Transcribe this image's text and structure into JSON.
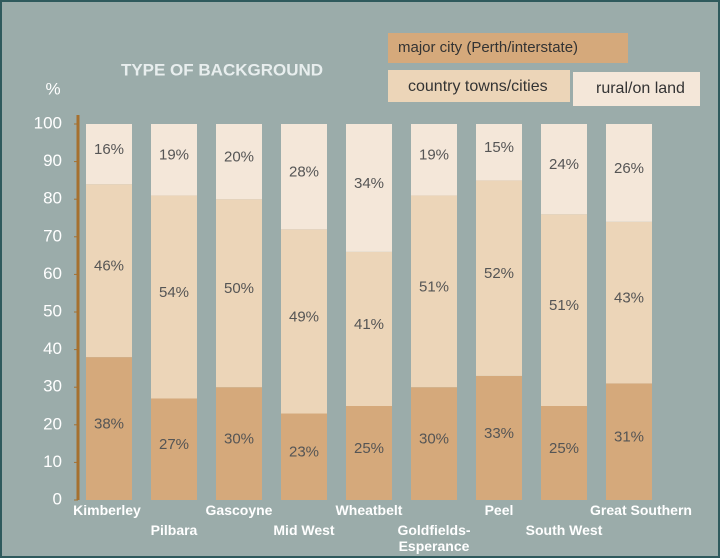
{
  "chart_data": {
    "type": "stacked_bar",
    "title": "TYPE OF BACKGROUND",
    "y_label": "%",
    "categories": [
      "Kimberley",
      "Pilbara",
      "Gascoyne",
      "Mid West",
      "Wheatbelt",
      "Goldfields-\nEsperance",
      "Peel",
      "South West",
      "Great Southern"
    ],
    "series": [
      {
        "name": "major city (Perth/interstate)",
        "color": "#d5a97b",
        "values": [
          38,
          27,
          30,
          23,
          25,
          30,
          33,
          25,
          31
        ],
        "value_labels": [
          "38%",
          "27%",
          "30%",
          "23%",
          "25%",
          "30%",
          "33%",
          "25%",
          "31%"
        ]
      },
      {
        "name": "country towns/cities",
        "color": "#ecd5b8",
        "values": [
          46,
          54,
          50,
          49,
          41,
          51,
          52,
          51,
          43
        ],
        "value_labels": [
          "46%",
          "54%",
          "50%",
          "49%",
          "41%",
          "51%",
          "52%",
          "51%",
          "43%"
        ]
      },
      {
        "name": "rural/on land",
        "color": "#f4e7d9",
        "values": [
          16,
          19,
          20,
          28,
          34,
          19,
          15,
          24,
          26
        ],
        "value_labels": [
          "16%",
          "19%",
          "20%",
          "28%",
          "34%",
          "19%",
          "15%",
          "24%",
          "26%"
        ]
      }
    ],
    "ylim": [
      0,
      100
    ],
    "yticks": [
      0,
      10,
      20,
      30,
      40,
      50,
      60,
      70,
      80,
      90,
      100
    ]
  }
}
